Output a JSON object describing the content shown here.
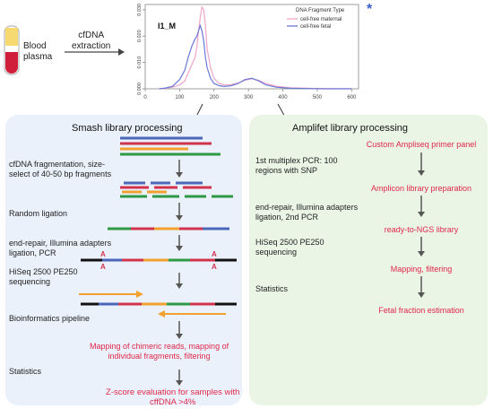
{
  "top": {
    "blood_label": "Blood\nplasma",
    "extraction_label": "cfDNA\nextraction",
    "asterisk": "*"
  },
  "chart": {
    "sample_label": "I1_M",
    "legend_title": "DNA Fragment Type",
    "series_labels": [
      "cell-free maternal",
      "cell-free fetal"
    ],
    "colors": {
      "maternal": "#f0a6c8",
      "fetal": "#6b79d6"
    }
  },
  "chart_data": {
    "type": "line",
    "x": [
      40,
      60,
      80,
      100,
      115,
      125,
      135,
      145,
      150,
      155,
      160,
      165,
      170,
      175,
      180,
      190,
      200,
      215,
      230,
      250,
      270,
      290,
      310,
      330,
      350,
      380,
      420,
      470,
      520,
      600
    ],
    "series": [
      {
        "name": "cell-free maternal",
        "values": [
          0.0,
          0.0002,
          0.0006,
          0.0015,
          0.003,
          0.006,
          0.009,
          0.012,
          0.016,
          0.022,
          0.027,
          0.031,
          0.03,
          0.024,
          0.015,
          0.008,
          0.004,
          0.002,
          0.0015,
          0.0016,
          0.0022,
          0.0032,
          0.0038,
          0.0032,
          0.002,
          0.001,
          0.0004,
          0.0002,
          0.0001,
          0.0
        ]
      },
      {
        "name": "cell-free fetal",
        "values": [
          0.0,
          0.0003,
          0.001,
          0.0035,
          0.007,
          0.012,
          0.016,
          0.019,
          0.02,
          0.022,
          0.024,
          0.022,
          0.018,
          0.012,
          0.008,
          0.004,
          0.002,
          0.0012,
          0.0009,
          0.0012,
          0.002,
          0.0035,
          0.004,
          0.003,
          0.0015,
          0.0006,
          0.0002,
          0.0001,
          0.0,
          0.0
        ]
      }
    ],
    "xlim": [
      0,
      620
    ],
    "ylim": [
      0,
      0.032
    ],
    "xticks": [
      "0",
      "100",
      "200",
      "300",
      "400",
      "500",
      "600"
    ],
    "yticks": [
      "0.000",
      "0.010",
      "0.020",
      "0.030"
    ],
    "legend_placement": "top-right"
  },
  "left": {
    "title": "Smash library processing",
    "steps": [
      "cfDNA fragmentation, size-\nselect of 40-50 bp fragments",
      "Random ligation",
      "end-repair, Illumina adapters\nligation, PCR",
      "HiSeq 2500 PE250\nsequencing",
      "Bioinformatics pipeline",
      "Statistics"
    ],
    "result_mapping": "Mapping of chimeric reads, mapping of\nindividual fragments, filtering",
    "result_zscore": "Z-score evaluation for samples with\ncffDNA >4%",
    "adapter_letter": "A"
  },
  "right": {
    "title": "Amplifet library processing",
    "steps": [
      "1st multiplex PCR: 100\nregions with SNP",
      "end-repair, Illumina adapters\nligation, 2nd PCR",
      "HiSeq 2500 PE250\nsequencing",
      "Statistics"
    ],
    "flow": [
      "Custom Ampliseq primer panel",
      "Amplicon library preparation",
      "ready-to-NGS library",
      "Mapping, filtering",
      "Fetal fraction estimation"
    ]
  },
  "colors": {
    "blue": "#4c67b8",
    "red": "#d1334d",
    "orange": "#f2a12e",
    "green": "#2e9a46",
    "black": "#111111",
    "arrow": "#555555",
    "accent_red": "#e0284a"
  }
}
